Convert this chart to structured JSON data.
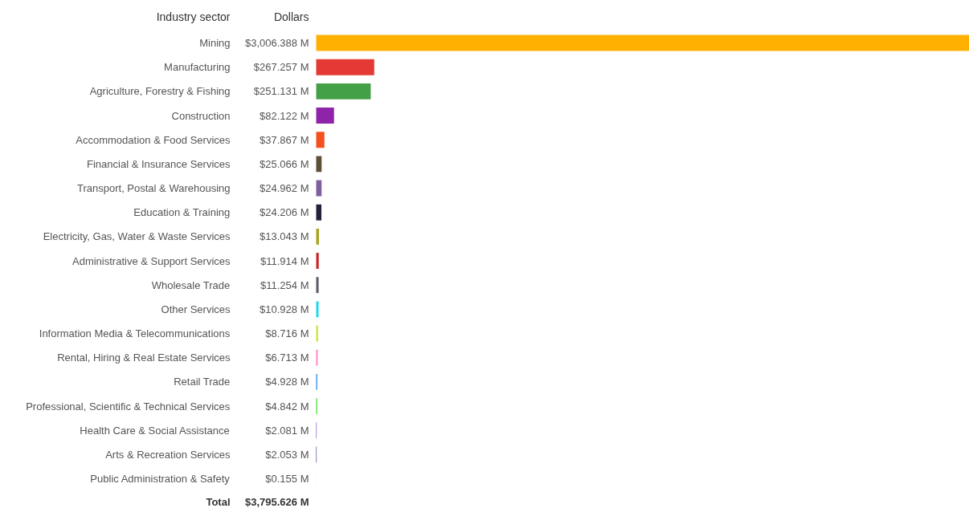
{
  "chart_data": {
    "type": "bar",
    "orientation": "horizontal",
    "categories": [
      "Mining",
      "Manufacturing",
      "Agriculture, Forestry & Fishing",
      "Construction",
      "Accommodation & Food Services",
      "Financial & Insurance Services",
      "Transport, Postal & Warehousing",
      "Education & Training",
      "Electricity, Gas, Water & Waste Services",
      "Administrative & Support Services",
      "Wholesale Trade",
      "Other Services",
      "Information Media & Telecommunications",
      "Rental, Hiring & Real Estate Services",
      "Retail Trade",
      "Professional, Scientific & Technical Services",
      "Health Care & Social Assistance",
      "Arts & Recreation Services",
      "Public Administration & Safety"
    ],
    "values": [
      3006.388,
      267.257,
      251.131,
      82.122,
      37.867,
      25.066,
      24.962,
      24.206,
      13.043,
      11.914,
      11.254,
      10.928,
      8.716,
      6.713,
      4.928,
      4.842,
      2.081,
      2.053,
      0.155
    ],
    "value_labels": [
      "$3,006.388 M",
      "$267.257 M",
      "$251.131 M",
      "$82.122 M",
      "$37.867 M",
      "$25.066 M",
      "$24.962 M",
      "$24.206 M",
      "$13.043 M",
      "$11.914 M",
      "$11.254 M",
      "$10.928 M",
      "$8.716 M",
      "$6.713 M",
      "$4.928 M",
      "$4.842 M",
      "$2.081 M",
      "$2.053 M",
      "$0.155 M"
    ],
    "colors": [
      "#ffb000",
      "#e53935",
      "#43a047",
      "#8e24aa",
      "#f4511e",
      "#5d4e37",
      "#7e5fa0",
      "#22223b",
      "#a6a624",
      "#c62828",
      "#5a5a6a",
      "#1fd8f0",
      "#c6e83a",
      "#ff7ec8",
      "#2e8ff0",
      "#4ce03a",
      "#6a3cc8",
      "#1f2a8a",
      "#e08a10"
    ],
    "annotations": [
      "Industry sector",
      "Dollars",
      "Total",
      "$3,795.626 M"
    ],
    "grid": false
  }
}
